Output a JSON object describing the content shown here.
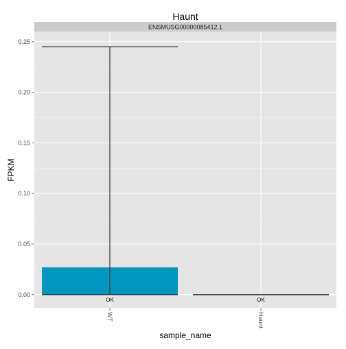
{
  "chart_data": {
    "type": "bar",
    "title": "Haunt",
    "facet_label": "ENSMUSG00000085412.1",
    "xlabel": "sample_name",
    "ylabel": "FPKM",
    "categories": [
      "WT",
      "Haunt"
    ],
    "values": [
      0.027,
      0.0
    ],
    "error_low": [
      0.0,
      0.0
    ],
    "error_high": [
      0.245,
      0.0
    ],
    "status_labels": [
      "OK",
      "OK"
    ],
    "ylim": [
      -0.013,
      0.26
    ],
    "yticks": [
      0.0,
      0.05,
      0.1,
      0.15,
      0.2,
      0.25
    ],
    "ytick_labels": [
      "0.00",
      "0.05",
      "0.10",
      "0.15",
      "0.20",
      "0.25"
    ],
    "grid": true,
    "colors": {
      "bar": "#0096c0",
      "panel_bg": "#e5e5e5",
      "strip_bg": "#cccccc",
      "grid_major": "#ffffff",
      "grid_minor": "#f2f2f2",
      "error_bar": "#333333"
    }
  }
}
